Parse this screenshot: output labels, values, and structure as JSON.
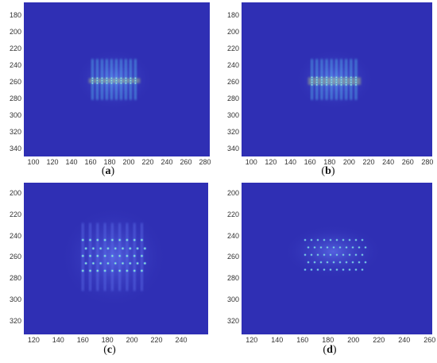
{
  "chart_data": [
    {
      "type": "heatmap",
      "caption_letter": "a",
      "xticks": [
        "100",
        "120",
        "140",
        "160",
        "180",
        "200",
        "220",
        "240",
        "260",
        "280"
      ],
      "yticks": [
        "180",
        "200",
        "220",
        "240",
        "260",
        "280",
        "300",
        "320",
        "340"
      ],
      "xlim": [
        90,
        285
      ],
      "ylim": [
        350,
        165
      ],
      "bright_region": {
        "x": [
          158,
          212
        ],
        "y": [
          233,
          282
        ]
      },
      "stripe_columns_x": [
        162,
        167,
        172,
        177,
        182,
        187,
        192,
        197,
        202,
        207
      ],
      "hot_row_y": [
        256,
        262
      ],
      "style": "stripes"
    },
    {
      "type": "heatmap",
      "caption_letter": "b",
      "xticks": [
        "100",
        "120",
        "140",
        "160",
        "180",
        "200",
        "220",
        "240",
        "260",
        "280"
      ],
      "yticks": [
        "180",
        "200",
        "220",
        "240",
        "260",
        "280",
        "300",
        "320",
        "340"
      ],
      "xlim": [
        90,
        285
      ],
      "ylim": [
        350,
        165
      ],
      "bright_region": {
        "x": [
          158,
          212
        ],
        "y": [
          233,
          282
        ]
      },
      "stripe_columns_x": [
        162,
        167,
        172,
        177,
        182,
        187,
        192,
        197,
        202,
        207
      ],
      "hot_row_y": [
        255,
        264
      ],
      "style": "stripes"
    },
    {
      "type": "heatmap",
      "caption_letter": "c",
      "xticks": [
        "120",
        "140",
        "160",
        "180",
        "200",
        "220",
        "240"
      ],
      "yticks": [
        "200",
        "220",
        "240",
        "260",
        "280",
        "300",
        "320"
      ],
      "xlim": [
        112,
        262
      ],
      "ylim": [
        333,
        190
      ],
      "bright_region": {
        "x": [
          156,
          214
        ],
        "y": [
          228,
          292
        ]
      },
      "spot_rows_y": [
        244,
        252,
        259,
        266,
        273
      ],
      "spot_columns_x": [
        160,
        166,
        172,
        178,
        184,
        190,
        196,
        202,
        208
      ],
      "style": "spots-diffuse"
    },
    {
      "type": "heatmap",
      "caption_letter": "d",
      "xticks": [
        "120",
        "140",
        "160",
        "180",
        "200",
        "220",
        "240",
        "260"
      ],
      "yticks": [
        "200",
        "220",
        "240",
        "260",
        "280",
        "300",
        "320"
      ],
      "xlim": [
        112,
        262
      ],
      "ylim": [
        333,
        190
      ],
      "bright_region": {
        "x": [
          158,
          210
        ],
        "y": [
          238,
          272
        ]
      },
      "spot_rows_y": [
        244,
        251,
        258,
        265,
        272
      ],
      "spot_columns_x": [
        162,
        167,
        172,
        177,
        182,
        187,
        192,
        197,
        202,
        207
      ],
      "style": "spots-sharp"
    }
  ],
  "colors": {
    "background": "#2f2fb4",
    "glow": "#5a6be6",
    "spot_mid": "#59c6f5",
    "spot_hot": "#d6f26e",
    "spot_peak": "#fff98a"
  }
}
